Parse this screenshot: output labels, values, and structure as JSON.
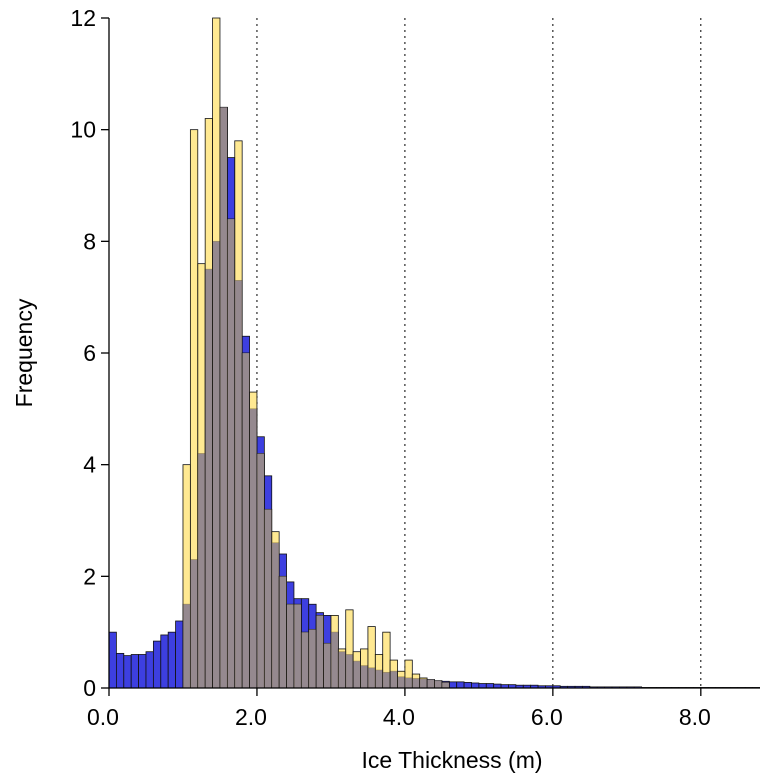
{
  "chart_data": {
    "type": "bar",
    "title": "",
    "xlabel": "Ice Thickness (m)",
    "ylabel": "Frequency",
    "xlim": [
      0,
      8.8
    ],
    "ylim": [
      0,
      12
    ],
    "bin_width": 0.1,
    "x_ticks": [
      {
        "value": 0,
        "label": "0.0"
      },
      {
        "value": 2,
        "label": "2.0"
      },
      {
        "value": 4,
        "label": "4.0"
      },
      {
        "value": 6,
        "label": "6.0"
      },
      {
        "value": 8,
        "label": "8.0"
      }
    ],
    "y_ticks": [
      {
        "value": 0,
        "label": "0"
      },
      {
        "value": 2,
        "label": "2"
      },
      {
        "value": 4,
        "label": "4"
      },
      {
        "value": 6,
        "label": "6"
      },
      {
        "value": 8,
        "label": "8"
      },
      {
        "value": 10,
        "label": "10"
      },
      {
        "value": 12,
        "label": "12"
      }
    ],
    "vertical_gridlines_x": [
      2,
      4,
      6,
      8
    ],
    "grid": "dotted vertical lines at x = 2, 4, 6, 8",
    "overlap_color": "#8E8491",
    "series": [
      {
        "color": "#3D3FE0",
        "x_start": 0.0,
        "values": [
          1.0,
          0.62,
          0.58,
          0.6,
          0.6,
          0.65,
          0.84,
          0.95,
          1.0,
          1.2,
          1.5,
          2.3,
          4.2,
          7.5,
          8.0,
          10.4,
          9.5,
          7.3,
          6.3,
          5.0,
          4.5,
          3.8,
          2.6,
          2.4,
          1.9,
          1.6,
          1.6,
          1.5,
          1.35,
          1.3,
          1.0,
          0.65,
          0.6,
          0.48,
          0.4,
          0.36,
          0.32,
          0.28,
          0.3,
          0.2,
          0.18,
          0.17,
          0.16,
          0.15,
          0.13,
          0.12,
          0.11,
          0.11,
          0.1,
          0.09,
          0.08,
          0.08,
          0.07,
          0.06,
          0.06,
          0.05,
          0.05,
          0.05,
          0.04,
          0.04,
          0.04,
          0.03,
          0.03,
          0.03,
          0.03,
          0.02,
          0.02,
          0.02,
          0.02,
          0.02,
          0.02,
          0.02,
          0.01,
          0.01,
          0.01,
          0.01,
          0.01,
          0.01,
          0.01,
          0.01,
          0.01,
          0.01,
          0.01,
          0.01,
          0.01,
          0.01,
          0.01,
          0.01
        ]
      },
      {
        "color": "#FFDD57",
        "x_start": 1.0,
        "values": [
          4.0,
          10.0,
          7.6,
          10.2,
          12.2,
          10.4,
          8.4,
          9.8,
          6.0,
          5.3,
          4.2,
          3.2,
          2.8,
          2.0,
          1.5,
          1.5,
          1.0,
          1.05,
          1.3,
          0.8,
          1.3,
          0.7,
          1.4,
          0.65,
          0.7,
          1.1,
          0.6,
          1.0,
          0.5,
          0.3,
          0.5,
          0.25,
          0.18,
          0.15,
          0.13,
          0.1
        ]
      }
    ]
  }
}
